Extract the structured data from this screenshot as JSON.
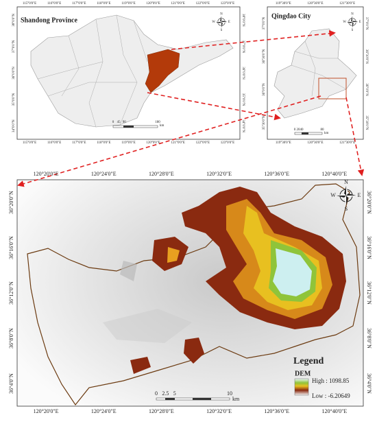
{
  "shandong_panel": {
    "title": "Shandong Province",
    "x_labels": [
      "115°0'0\"E",
      "116°0'0\"E",
      "117°0'0\"E",
      "118°0'0\"E",
      "119°0'0\"E",
      "120°0'0\"E",
      "121°0'0\"E",
      "122°0'0\"E",
      "123°0'0\"E"
    ],
    "y_labels": [
      "38°0'0\"N",
      "37°0'0\"N",
      "36°0'0\"N",
      "35°0'0\"N",
      "34°0'0\"N"
    ],
    "scale": {
      "ticks": [
        "0",
        "45",
        "90",
        "180"
      ],
      "unit": "km"
    }
  },
  "qingdao_panel": {
    "title": "Qingdao City",
    "x_labels": [
      "119°30'0\"E",
      "120°30'0\"E",
      "121°30'0\"E"
    ],
    "y_labels": [
      "37°0'0\"N",
      "36°30'0\"N",
      "36°0'0\"N",
      "35°30'0\"N"
    ],
    "scale": {
      "ticks": [
        "0",
        "20",
        "40",
        "80"
      ],
      "unit": "km"
    }
  },
  "main_panel": {
    "x_labels": [
      "120°20'0\"E",
      "120°24'0\"E",
      "120°28'0\"E",
      "120°32'0\"E",
      "120°36'0\"E",
      "120°40'0\"E"
    ],
    "y_labels": [
      "36°20'0\"N",
      "36°16'0\"N",
      "36°12'0\"N",
      "36°8'0\"N",
      "36°4'0\"N"
    ],
    "legend": {
      "title": "Legend",
      "layer": "DEM",
      "high": "High : 1098.85",
      "low": "Low : -6.20649"
    },
    "scale": {
      "ticks": [
        "0",
        "2.5",
        "5",
        "10"
      ],
      "unit": "km"
    }
  },
  "north_arrow": {
    "n": "N",
    "s": "S",
    "e": "E",
    "w": "W"
  }
}
